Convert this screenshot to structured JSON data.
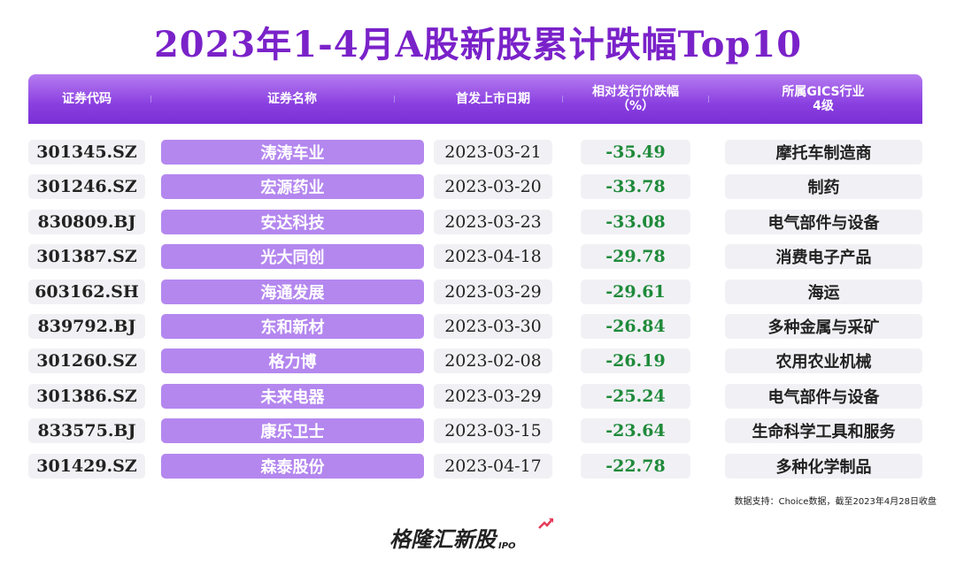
{
  "title": "2023年1-4月A股新股累计跌幅Top10",
  "colors": {
    "accent": "#7a22c9",
    "name_cell": "#b487ef",
    "drop_text": "#1f8a3a",
    "cell_bg": "#f1f1f5"
  },
  "chart_data": {
    "type": "table",
    "title": "2023年1-4月A股新股累计跌幅Top10",
    "columns": [
      "证券代码",
      "证券名称",
      "首发上市日期",
      "相对发行价跌幅\n（%）",
      "所属GICS行业\n4级"
    ],
    "rows": [
      [
        "301345.SZ",
        "涛涛车业",
        "2023-03-21",
        "-35.49",
        "摩托车制造商"
      ],
      [
        "301246.SZ",
        "宏源药业",
        "2023-03-20",
        "-33.78",
        "制药"
      ],
      [
        "830809.BJ",
        "安达科技",
        "2023-03-23",
        "-33.08",
        "电气部件与设备"
      ],
      [
        "301387.SZ",
        "光大同创",
        "2023-04-18",
        "-29.78",
        "消费电子产品"
      ],
      [
        "603162.SH",
        "海通发展",
        "2023-03-29",
        "-29.61",
        "海运"
      ],
      [
        "839792.BJ",
        "东和新材",
        "2023-03-30",
        "-26.84",
        "多种金属与采矿"
      ],
      [
        "301260.SZ",
        "格力博",
        "2023-02-08",
        "-26.19",
        "农用农业机械"
      ],
      [
        "301386.SZ",
        "未来电器",
        "2023-03-29",
        "-25.24",
        "电气部件与设备"
      ],
      [
        "833575.BJ",
        "康乐卫士",
        "2023-03-15",
        "-23.64",
        "生命科学工具和服务"
      ],
      [
        "301429.SZ",
        "森泰股份",
        "2023-04-17",
        "-22.78",
        "多种化学制品"
      ]
    ]
  },
  "source": "数据支持：Choice数据，截至2023年4月28日收盘",
  "logo": {
    "text": "格隆汇新股",
    "suffix": "IPO"
  }
}
